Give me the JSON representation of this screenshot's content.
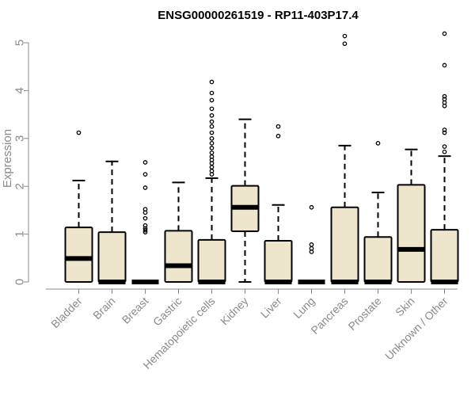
{
  "chart_data": {
    "type": "box",
    "title": "ENSG00000261519 - RP11-403P17.4",
    "xlabel": "",
    "ylabel": "Expression",
    "ylim": [
      0,
      5.25
    ],
    "yticks": [
      "0",
      "1",
      "2",
      "3",
      "4",
      "5"
    ],
    "colors": {
      "box_fill": "#ede6cd",
      "box_stroke": "#000000",
      "axis": "#8a8a8a"
    },
    "categories": [
      "Bladder",
      "Brain",
      "Breast",
      "Gastric",
      "Hematopoietic cells",
      "Kidney",
      "Liver",
      "Lung",
      "Pancreas",
      "Prostate",
      "Skin",
      "Unknown / Other"
    ],
    "boxes": [
      {
        "q1": 0,
        "median": 0.49,
        "q3": 1.14,
        "whisker_low": 0,
        "whisker_high": 2.12,
        "outliers": [
          3.12
        ]
      },
      {
        "q1": 0,
        "median": 0,
        "q3": 1.04,
        "whisker_low": 0,
        "whisker_high": 2.52,
        "outliers": []
      },
      {
        "q1": 0,
        "median": 0,
        "q3": 0,
        "whisker_low": 0,
        "whisker_high": 0,
        "outliers": [
          1.04,
          1.08,
          1.12,
          1.18,
          1.33,
          1.45,
          1.52,
          1.97,
          2.25,
          2.5
        ]
      },
      {
        "q1": 0,
        "median": 0.34,
        "q3": 1.07,
        "whisker_low": 0,
        "whisker_high": 2.08,
        "outliers": []
      },
      {
        "q1": 0,
        "median": 0,
        "q3": 0.88,
        "whisker_low": 0,
        "whisker_high": 2.17,
        "outliers": [
          2.25,
          2.32,
          2.4,
          2.48,
          2.55,
          2.62,
          2.7,
          2.8,
          2.9,
          3.0,
          3.12,
          3.25,
          3.35,
          3.48,
          3.62,
          3.8,
          3.95,
          4.18
        ]
      },
      {
        "q1": 1.06,
        "median": 1.56,
        "q3": 2.01,
        "whisker_low": 0,
        "whisker_high": 3.4,
        "outliers": []
      },
      {
        "q1": 0,
        "median": 0,
        "q3": 0.86,
        "whisker_low": 0,
        "whisker_high": 1.61,
        "outliers": [
          3.05,
          3.25
        ]
      },
      {
        "q1": 0,
        "median": 0,
        "q3": 0,
        "whisker_low": 0,
        "whisker_high": 0,
        "outliers": [
          0.63,
          0.7,
          0.78,
          1.56
        ]
      },
      {
        "q1": 0,
        "median": 0,
        "q3": 1.56,
        "whisker_low": 0,
        "whisker_high": 2.85,
        "outliers": [
          4.98,
          5.14
        ]
      },
      {
        "q1": 0,
        "median": 0,
        "q3": 0.94,
        "whisker_low": 0,
        "whisker_high": 1.87,
        "outliers": [
          2.9
        ]
      },
      {
        "q1": 0,
        "median": 0.68,
        "q3": 2.03,
        "whisker_low": 0,
        "whisker_high": 2.77,
        "outliers": []
      },
      {
        "q1": 0,
        "median": 0,
        "q3": 1.09,
        "whisker_low": 0,
        "whisker_high": 2.63,
        "outliers": [
          2.72,
          2.83,
          3.12,
          3.18,
          3.68,
          3.75,
          3.82,
          3.88,
          4.53,
          5.19
        ]
      }
    ]
  }
}
